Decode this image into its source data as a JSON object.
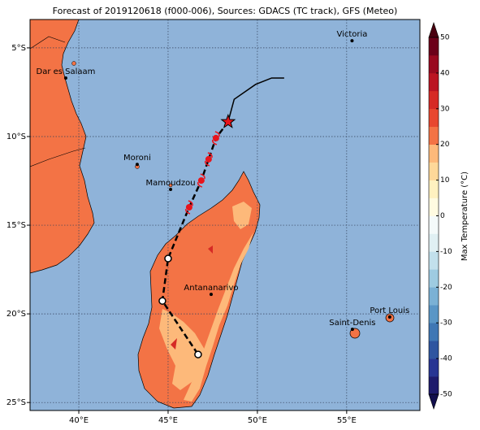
{
  "map": {
    "title": "Forecast of 2019120618 (f000-006), Sources: GDACS (TC track), GFS (Meteo)",
    "lonlim": [
      37.27,
      59.1
    ],
    "latlim": [
      -25.45,
      -3.4
    ],
    "lon_ticks": [
      {
        "value": 40,
        "label": "40°E"
      },
      {
        "value": 45,
        "label": "45°E"
      },
      {
        "value": 50,
        "label": "50°E"
      },
      {
        "value": 55,
        "label": "55°E"
      }
    ],
    "lat_ticks": [
      {
        "value": -5,
        "label": "5°S"
      },
      {
        "value": -10,
        "label": "10°S"
      },
      {
        "value": -15,
        "label": "15°S"
      },
      {
        "value": -20,
        "label": "20°S"
      },
      {
        "value": -25,
        "label": "25°S"
      }
    ],
    "grid": true,
    "ocean_color": "#8fb3d9",
    "cities": [
      {
        "name": "Victoria",
        "lon": 55.3,
        "lat": -4.6
      },
      {
        "name": "Dar es Salaam",
        "lon": 39.27,
        "lat": -6.7
      },
      {
        "name": "Moroni",
        "lon": 43.27,
        "lat": -11.57
      },
      {
        "name": "Mamoudzou",
        "lon": 45.14,
        "lat": -12.98
      },
      {
        "name": "Antananarivo",
        "lon": 47.41,
        "lat": -18.9
      },
      {
        "name": "Saint-Denis",
        "lon": 55.32,
        "lat": -20.87
      },
      {
        "name": "Port Louis",
        "lon": 57.41,
        "lat": -20.18
      }
    ],
    "forecast_track": {
      "lon": [
        51.5,
        50.8,
        49.9,
        48.7,
        48.36
      ],
      "lat": [
        -6.7,
        -6.7,
        -7.06,
        -7.9,
        -9.17
      ],
      "color": "#000000"
    },
    "current_position": {
      "lon": 48.36,
      "lat": -9.17,
      "color": "#e8141c"
    },
    "past_track": {
      "lon": [
        48.36,
        47.68,
        47.27,
        46.86,
        46.18,
        45.0,
        44.68,
        46.68
      ],
      "lat": [
        -9.17,
        -10.09,
        -11.28,
        -12.48,
        -13.99,
        -16.88,
        -19.27,
        -22.29
      ],
      "color": "#000000"
    },
    "storm_points": {
      "lon": [
        47.68,
        47.27,
        46.86,
        46.18
      ],
      "lat": [
        -10.09,
        -11.28,
        -12.48,
        -13.99
      ],
      "color": "#e8141c"
    },
    "low_points": {
      "lon": [
        45.0,
        44.68,
        46.68
      ],
      "lat": [
        -16.88,
        -19.27,
        -22.29
      ]
    },
    "colorbar": {
      "label": "Max Temperature (°C)",
      "limits": [
        -50,
        50
      ],
      "ticks": [
        -50,
        -40,
        -30,
        -20,
        -10,
        0,
        10,
        20,
        30,
        40,
        50
      ],
      "colors": [
        "#1e1b6c",
        "#283593",
        "#2f55a0",
        "#3f77b4",
        "#5a96c6",
        "#7bb1d5",
        "#9ecbe1",
        "#c2e0ec",
        "#e0f0f3",
        "#f4fafa",
        "#fffbe1",
        "#fff1c0",
        "#fed899",
        "#fdb97a",
        "#f37345",
        "#e8472f",
        "#d62a25",
        "#bb1422",
        "#99091f",
        "#6c0019"
      ],
      "extend_colors": [
        "#120f4d",
        "#4a0010"
      ]
    }
  }
}
